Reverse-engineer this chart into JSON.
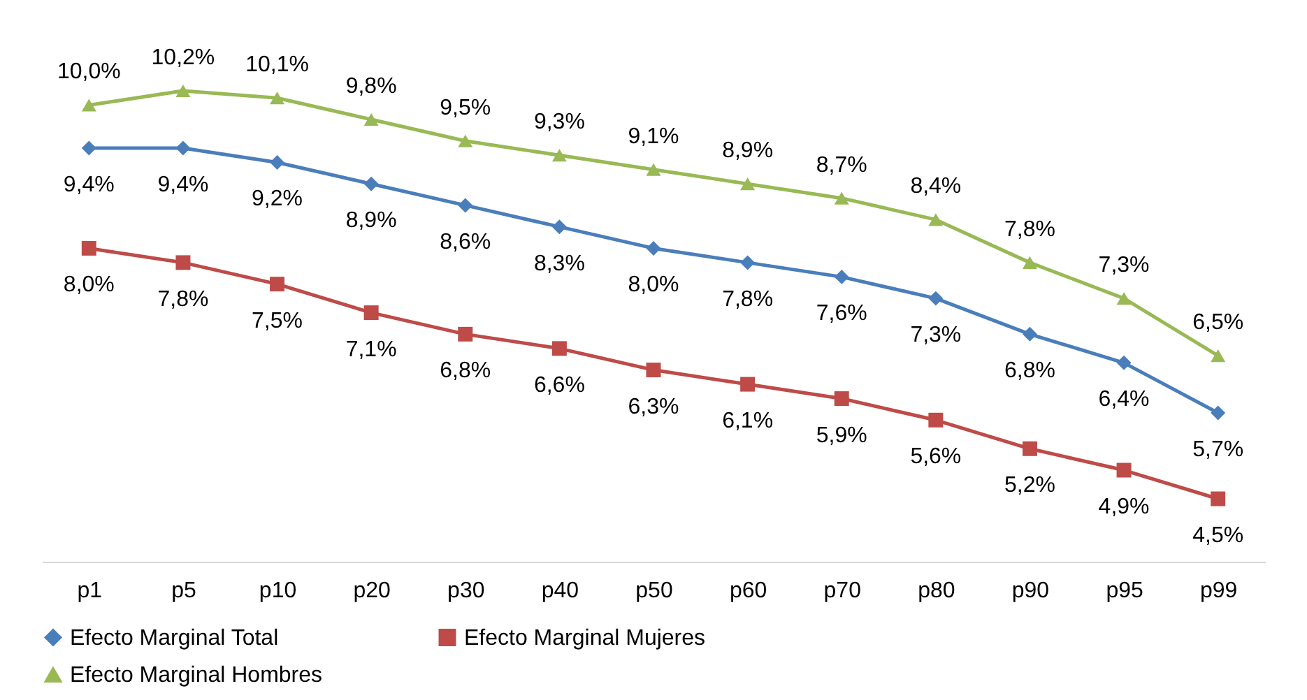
{
  "chart_data": {
    "type": "line",
    "categories": [
      "p1",
      "p5",
      "p10",
      "p20",
      "p30",
      "p40",
      "p50",
      "p60",
      "p70",
      "p80",
      "p90",
      "p95",
      "p99"
    ],
    "series": [
      {
        "name": "Efecto Marginal Total",
        "color": "#4a7ebb",
        "marker": "diamond",
        "values": [
          9.4,
          9.4,
          9.2,
          8.9,
          8.6,
          8.3,
          8.0,
          7.8,
          7.6,
          7.3,
          6.8,
          6.4,
          5.7
        ],
        "value_labels": [
          "9,4%",
          "9,4%",
          "9,2%",
          "8,9%",
          "8,6%",
          "8,3%",
          "8,0%",
          "7,8%",
          "7,6%",
          "7,3%",
          "6,8%",
          "6,4%",
          "5,7%"
        ]
      },
      {
        "name": "Efecto Marginal Mujeres",
        "color": "#be4b48",
        "marker": "square",
        "values": [
          8.0,
          7.8,
          7.5,
          7.1,
          6.8,
          6.6,
          6.3,
          6.1,
          5.9,
          5.6,
          5.2,
          4.9,
          4.5
        ],
        "value_labels": [
          "8,0%",
          "7,8%",
          "7,5%",
          "7,1%",
          "6,8%",
          "6,6%",
          "6,3%",
          "6,1%",
          "5,9%",
          "5,6%",
          "5,2%",
          "4,9%",
          "4,5%"
        ]
      },
      {
        "name": "Efecto Marginal Hombres",
        "color": "#98b954",
        "marker": "triangle",
        "values": [
          10.0,
          10.2,
          10.1,
          9.8,
          9.5,
          9.3,
          9.1,
          8.9,
          8.7,
          8.4,
          7.8,
          7.3,
          6.5
        ],
        "value_labels": [
          "10,0%",
          "10,2%",
          "10,1%",
          "9,8%",
          "9,5%",
          "9,3%",
          "9,1%",
          "8,9%",
          "8,7%",
          "8,4%",
          "7,8%",
          "7,3%",
          "6,5%"
        ]
      }
    ],
    "legend": "bottom",
    "grid": false,
    "tick_labels": "x",
    "line_style": "solid"
  }
}
